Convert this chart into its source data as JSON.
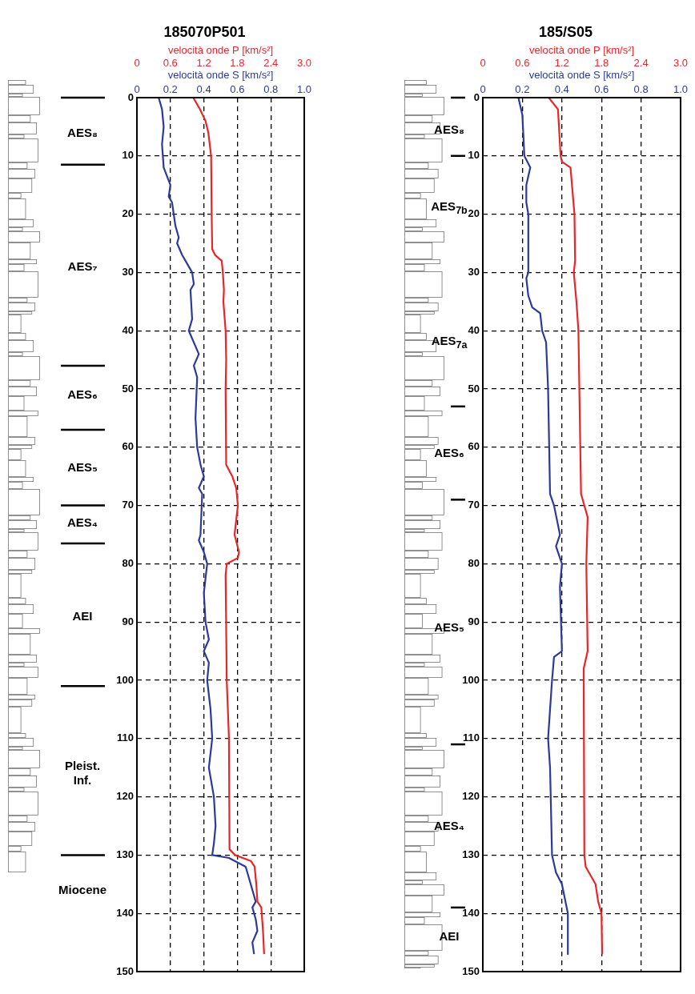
{
  "chart_data": [
    {
      "type": "line",
      "title": "185070P501",
      "xlabel": "velocità onde S [km/s²]",
      "x2label": "velocità onde P [km/s²]",
      "ylim": [
        150,
        0
      ],
      "yticks": [
        0,
        10,
        20,
        30,
        40,
        50,
        60,
        70,
        80,
        90,
        100,
        110,
        120,
        130,
        140,
        150
      ],
      "xlim": [
        0,
        1.0
      ],
      "xticks": [
        {
          "value": 0,
          "label": "0"
        },
        {
          "value": 0.2,
          "label": "0.2"
        },
        {
          "value": 0.4,
          "label": "0.4"
        },
        {
          "value": 0.6,
          "label": "0.6"
        },
        {
          "value": 0.8,
          "label": "0.8"
        },
        {
          "value": 1.0,
          "label": "1.0"
        }
      ],
      "x2lim": [
        0,
        3.0
      ],
      "x2ticks": [
        {
          "value": 0,
          "label": "0"
        },
        {
          "value": 0.6,
          "label": "0.6"
        },
        {
          "value": 1.2,
          "label": "1.2"
        },
        {
          "value": 1.8,
          "label": "1.8"
        },
        {
          "value": 2.4,
          "label": "2.4"
        },
        {
          "value": 3.0,
          "label": "3.0"
        }
      ],
      "grid": true,
      "line_style": "solid",
      "marker": "none",
      "series": [
        {
          "color": "#2b3a9b",
          "x": [
            0.13,
            0.15,
            0.16,
            0.15,
            0.16,
            0.2,
            0.19,
            0.21,
            0.22,
            0.23,
            0.25,
            0.24,
            0.27,
            0.31,
            0.33,
            0.34,
            0.32,
            0.33,
            0.31,
            0.37,
            0.34,
            0.36,
            0.35,
            0.36,
            0.38,
            0.4,
            0.37,
            0.39,
            0.38,
            0.37,
            0.4,
            0.42,
            0.4,
            0.41,
            0.43,
            0.4,
            0.43,
            0.42,
            0.44,
            0.45,
            0.43,
            0.46,
            0.47,
            0.46,
            0.45,
            0.55,
            0.65,
            0.68,
            0.71,
            0.69,
            0.71,
            0.72,
            0.69,
            0.7
          ],
          "values": [
            0,
            2,
            5,
            8,
            12,
            15,
            17,
            18,
            20,
            22,
            24,
            25,
            27,
            29,
            30,
            32,
            33,
            38,
            40,
            44,
            46,
            48,
            55,
            60,
            63,
            65,
            67,
            68,
            75,
            76,
            78,
            80,
            85,
            90,
            93,
            95,
            97,
            100,
            105,
            110,
            115,
            120,
            125,
            128,
            130,
            130.5,
            132,
            135,
            138,
            139,
            141,
            143,
            145,
            147
          ]
        },
        {
          "color": "#e8262a",
          "axis": "x2",
          "x": [
            1.01,
            1.13,
            1.23,
            1.28,
            1.33,
            1.34,
            1.35,
            1.4,
            1.52,
            1.54,
            1.56,
            1.55,
            1.59,
            1.6,
            1.59,
            1.6,
            1.71,
            1.78,
            1.81,
            1.75,
            1.83,
            1.81,
            1.61,
            1.59,
            1.61,
            1.65,
            1.66,
            1.76,
            2.04,
            2.11,
            2.14,
            2.16,
            2.23,
            2.26,
            2.28
          ],
          "values": [
            0,
            2,
            4,
            6,
            10,
            20,
            26,
            27,
            28,
            30,
            33,
            35,
            40,
            45,
            50,
            63,
            65,
            67,
            70,
            75,
            78,
            79,
            80,
            82,
            100,
            110,
            129,
            130,
            131,
            132,
            135,
            138,
            139,
            143,
            147
          ]
        }
      ],
      "annotations": [
        "AES₈",
        "AES₇",
        "AES₆",
        "AES₅",
        "AES₄",
        "AEI",
        "Pleist.\nInf.",
        "Miocene"
      ]
    },
    {
      "type": "line",
      "title": "185/S05",
      "xlabel": "velocità onde S [km/s²]",
      "x2label": "velocità onde P [km/s²]",
      "ylim": [
        150,
        0
      ],
      "yticks": [
        0,
        10,
        20,
        30,
        40,
        50,
        60,
        70,
        80,
        90,
        100,
        110,
        120,
        130,
        140,
        150
      ],
      "xlim": [
        0,
        1.0
      ],
      "xticks": [
        {
          "value": 0,
          "label": "0"
        },
        {
          "value": 0.2,
          "label": "0.2"
        },
        {
          "value": 0.4,
          "label": "0.4"
        },
        {
          "value": 0.6,
          "label": "0.6"
        },
        {
          "value": 0.8,
          "label": "0.8"
        },
        {
          "value": 1.0,
          "label": "1.0"
        }
      ],
      "x2lim": [
        0,
        3.0
      ],
      "x2ticks": [
        {
          "value": 0,
          "label": "0"
        },
        {
          "value": 0.6,
          "label": "0.6"
        },
        {
          "value": 1.2,
          "label": "1.2"
        },
        {
          "value": 1.8,
          "label": "1.8"
        },
        {
          "value": 2.4,
          "label": "2.4"
        },
        {
          "value": 3.0,
          "label": "3.0"
        }
      ],
      "grid": true,
      "line_style": "solid",
      "marker": "none",
      "series": [
        {
          "color": "#2b3a9b",
          "x": [
            0.18,
            0.2,
            0.21,
            0.24,
            0.22,
            0.22,
            0.23,
            0.23,
            0.22,
            0.23,
            0.25,
            0.29,
            0.3,
            0.32,
            0.33,
            0.34,
            0.36,
            0.39,
            0.37,
            0.4,
            0.39,
            0.4,
            0.36,
            0.35,
            0.34,
            0.33,
            0.34,
            0.35,
            0.37,
            0.4,
            0.43,
            0.43
          ],
          "values": [
            0,
            3,
            10,
            12,
            15,
            18,
            20,
            30,
            31,
            34,
            36,
            37,
            40,
            42,
            50,
            68,
            70,
            75,
            77,
            80,
            84,
            95,
            96,
            100,
            105,
            110,
            115,
            130,
            133,
            135,
            140,
            147
          ]
        },
        {
          "color": "#e8262a",
          "axis": "x2",
          "x": [
            1.0,
            1.14,
            1.18,
            1.2,
            1.33,
            1.39,
            1.4,
            1.38,
            1.42,
            1.45,
            1.49,
            1.54,
            1.59,
            1.57,
            1.59,
            1.53,
            1.54,
            1.56,
            1.71,
            1.75,
            1.8,
            1.81
          ],
          "values": [
            0,
            2,
            10,
            11,
            12,
            20,
            28,
            30,
            35,
            40,
            68,
            70,
            72,
            80,
            95,
            98,
            130,
            132,
            135,
            138,
            140,
            147
          ]
        }
      ],
      "annotations": [
        "AES₈",
        "AES$_{7b}$",
        "AES$_{7a}$",
        "AES₆",
        "AES₅",
        "AES₄",
        "AEI"
      ]
    }
  ]
}
